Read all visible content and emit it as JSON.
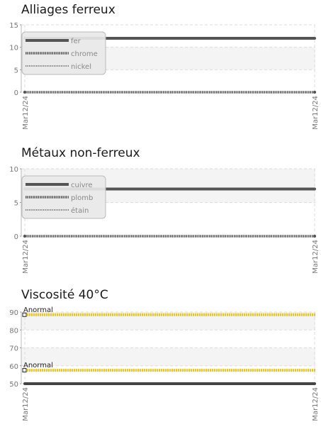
{
  "chart_data": [
    {
      "type": "line",
      "title": "Alliages ferreux",
      "categories": [
        "Mar12/24",
        "Mar12/24"
      ],
      "ylim": [
        0,
        15
      ],
      "yticks": [
        0,
        5,
        10,
        15
      ],
      "ytick_labels": [
        "0",
        "5",
        "10",
        "15"
      ],
      "grid": true,
      "legend_position": "top-left",
      "series": [
        {
          "name": "fer",
          "values": [
            12,
            12
          ],
          "style": "solid",
          "color": "#555555"
        },
        {
          "name": "chrome",
          "values": [
            0,
            0
          ],
          "style": "dense-dots",
          "color": "#555555"
        },
        {
          "name": "nickel",
          "values": [
            0,
            0
          ],
          "style": "dots",
          "color": "#777777"
        }
      ]
    },
    {
      "type": "line",
      "title": "Métaux non-ferreux",
      "categories": [
        "Mar12/24",
        "Mar12/24"
      ],
      "ylim": [
        0,
        10
      ],
      "yticks": [
        0,
        5,
        10
      ],
      "ytick_labels": [
        "0",
        "5",
        "10"
      ],
      "grid": true,
      "legend_position": "top-left",
      "series": [
        {
          "name": "cuivre",
          "values": [
            7,
            7
          ],
          "style": "solid",
          "color": "#555555"
        },
        {
          "name": "plomb",
          "values": [
            0,
            0
          ],
          "style": "dense-dots",
          "color": "#555555"
        },
        {
          "name": "étain",
          "values": [
            0,
            0
          ],
          "style": "dots",
          "color": "#777777"
        }
      ]
    },
    {
      "type": "line",
      "title": "Viscosité 40°C",
      "categories": [
        "Mar12/24",
        "Mar12/24"
      ],
      "ylim": [
        50,
        90
      ],
      "yticks": [
        50,
        60,
        70,
        80,
        90
      ],
      "ytick_labels": [
        "50",
        "60",
        "70",
        "80",
        "90"
      ],
      "grid": true,
      "series": [
        {
          "values": [
            50,
            50
          ],
          "style": "solid",
          "color": "#444444"
        }
      ],
      "threshold_lines": [
        {
          "value": 88.5,
          "label": "Anormal",
          "color": "#f0c419"
        },
        {
          "value": 57.5,
          "label": "Anormal",
          "color": "#f0c419"
        }
      ]
    }
  ]
}
